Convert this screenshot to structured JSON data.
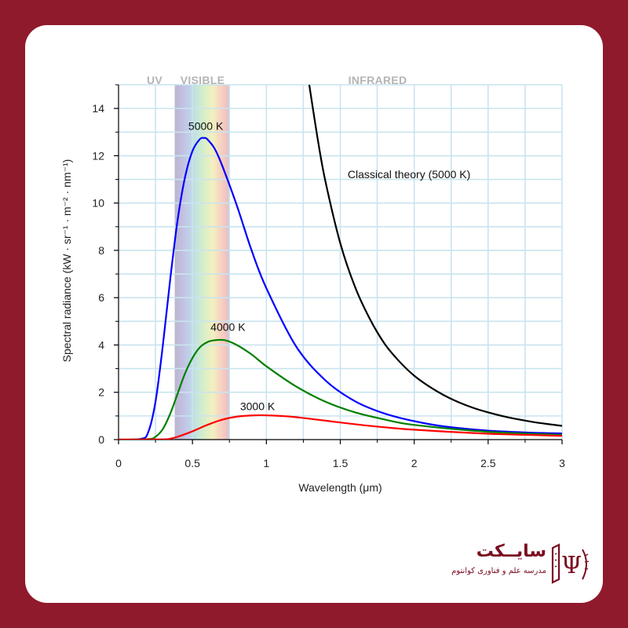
{
  "colors": {
    "background": "#8f1a2b",
    "card": "#ffffff",
    "grid": "#c9e4ee",
    "curve_5000": "#0000ff",
    "curve_4000": "#008000",
    "curve_3000": "#ff0000",
    "curve_classical": "#000000",
    "band_label": "#b4b4b4",
    "logo": "#7a0d20"
  },
  "bands": {
    "uv": "UV",
    "visible": "VISIBLE",
    "infrared": "INFRARED"
  },
  "chart_data": {
    "type": "line",
    "title": "",
    "xlabel": "Wavelength (μm)",
    "ylabel": "Spectral radiance (kW · sr⁻¹ · m⁻² · nm⁻¹)",
    "xlim": [
      0,
      3
    ],
    "ylim": [
      0,
      15
    ],
    "x_ticks": [
      "0",
      "0.5",
      "1",
      "1.5",
      "2",
      "2.5",
      "3"
    ],
    "y_ticks": [
      "0",
      "2",
      "4",
      "6",
      "8",
      "10",
      "12",
      "14"
    ],
    "grid": true,
    "visible_band_um": [
      0.38,
      0.75
    ],
    "series": [
      {
        "name": "5000 K",
        "color": "#0000ff",
        "x": [
          0,
          0.15,
          0.2,
          0.25,
          0.3,
          0.35,
          0.4,
          0.45,
          0.5,
          0.55,
          0.58,
          0.6,
          0.65,
          0.7,
          0.8,
          0.9,
          1.0,
          1.2,
          1.4,
          1.6,
          1.8,
          2.0,
          2.2,
          2.5,
          2.8,
          3.0
        ],
        "y": [
          0,
          0.03,
          0.3,
          1.6,
          4.0,
          6.8,
          9.3,
          11.1,
          12.2,
          12.7,
          12.75,
          12.7,
          12.3,
          11.6,
          9.9,
          8.0,
          6.4,
          3.95,
          2.5,
          1.62,
          1.1,
          0.78,
          0.56,
          0.38,
          0.29,
          0.26
        ]
      },
      {
        "name": "4000 K",
        "color": "#008000",
        "x": [
          0,
          0.2,
          0.25,
          0.3,
          0.35,
          0.4,
          0.45,
          0.5,
          0.55,
          0.6,
          0.65,
          0.72,
          0.8,
          0.9,
          1.0,
          1.2,
          1.4,
          1.6,
          1.8,
          2.0,
          2.5,
          3.0
        ],
        "y": [
          0,
          0.02,
          0.12,
          0.45,
          1.1,
          1.95,
          2.8,
          3.45,
          3.9,
          4.12,
          4.2,
          4.2,
          4.0,
          3.6,
          3.1,
          2.25,
          1.6,
          1.15,
          0.85,
          0.62,
          0.33,
          0.2
        ]
      },
      {
        "name": "3000 K",
        "color": "#ff0000",
        "x": [
          0,
          0.3,
          0.35,
          0.4,
          0.5,
          0.6,
          0.7,
          0.8,
          0.9,
          0.97,
          1.1,
          1.2,
          1.4,
          1.6,
          1.8,
          2.0,
          2.5,
          3.0
        ],
        "y": [
          0,
          0.01,
          0.04,
          0.12,
          0.35,
          0.62,
          0.84,
          0.97,
          1.02,
          1.03,
          1.0,
          0.95,
          0.8,
          0.65,
          0.52,
          0.42,
          0.25,
          0.16
        ]
      },
      {
        "name": "Classical theory (5000 K)",
        "color": "#000000",
        "x": [
          1.29,
          1.35,
          1.4,
          1.5,
          1.6,
          1.7,
          1.8,
          1.9,
          2.0,
          2.1,
          2.2,
          2.3,
          2.4,
          2.5,
          2.6,
          2.7,
          2.8,
          2.9,
          3.0
        ],
        "y": [
          15.0,
          12.6,
          10.9,
          8.3,
          6.45,
          5.1,
          4.05,
          3.3,
          2.7,
          2.25,
          1.88,
          1.58,
          1.34,
          1.15,
          0.99,
          0.86,
          0.75,
          0.66,
          0.58
        ]
      }
    ],
    "annotations": [
      {
        "text": "5000 K",
        "x": 0.59,
        "y": 13.1
      },
      {
        "text": "4000 K",
        "x": 0.74,
        "y": 4.6
      },
      {
        "text": "3000 K",
        "x": 0.94,
        "y": 1.25
      },
      {
        "text": "Classical theory (5000 K)",
        "x": 1.55,
        "y": 11.05
      }
    ]
  },
  "logo": {
    "title": "سایــکت",
    "subtitle": "مدرسه علم و فناوری کوانتوم",
    "symbol": "Ψ",
    "icon": "book-psi-icon"
  }
}
